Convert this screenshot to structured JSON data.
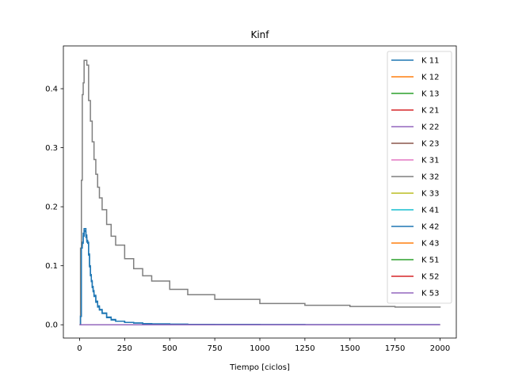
{
  "chart_data": {
    "type": "line",
    "title": "Kinf",
    "xlabel": "Tiempo [ciclos]",
    "ylabel": "",
    "xlim": [
      -90,
      2090
    ],
    "ylim": [
      -0.0225,
      0.4725
    ],
    "xticks": [
      0,
      250,
      500,
      750,
      1000,
      1250,
      1500,
      1750,
      2000
    ],
    "yticks": [
      0.0,
      0.1,
      0.2,
      0.3,
      0.4
    ],
    "grid": false,
    "legend_position": "upper-right",
    "series": [
      {
        "name": "K 11",
        "color": "#1f77b4",
        "step": true,
        "x": [
          0,
          5,
          10,
          15,
          20,
          25,
          30,
          35,
          40,
          45,
          50,
          55,
          60,
          65,
          70,
          75,
          80,
          90,
          100,
          110,
          125,
          150,
          175,
          200,
          250,
          300,
          350,
          400,
          500,
          600,
          750,
          1000,
          1250,
          1500,
          1750,
          2000
        ],
        "y": [
          0.0,
          0.015,
          0.135,
          0.14,
          0.155,
          0.163,
          0.163,
          0.152,
          0.143,
          0.14,
          0.12,
          0.1,
          0.085,
          0.075,
          0.065,
          0.058,
          0.05,
          0.04,
          0.032,
          0.026,
          0.02,
          0.013,
          0.009,
          0.006,
          0.004,
          0.003,
          0.002,
          0.0015,
          0.001,
          0.0007,
          0.0005,
          0.0003,
          0.0002,
          0.0002,
          0.0001,
          0.0001
        ]
      },
      {
        "name": "K 12",
        "color": "#ff7f0e",
        "x": [
          0,
          2000
        ],
        "y": [
          0.0,
          0.0
        ]
      },
      {
        "name": "K 13",
        "color": "#2ca02c",
        "x": [
          0,
          2000
        ],
        "y": [
          0.0,
          0.0
        ]
      },
      {
        "name": "K 21",
        "color": "#d62728",
        "x": [
          0,
          2000
        ],
        "y": [
          0.0,
          0.0
        ]
      },
      {
        "name": "K 22",
        "color": "#9467bd",
        "x": [
          0,
          2000
        ],
        "y": [
          0.0,
          0.0
        ]
      },
      {
        "name": "K 23",
        "color": "#8c564b",
        "x": [
          0,
          2000
        ],
        "y": [
          0.0,
          0.0
        ]
      },
      {
        "name": "K 31",
        "color": "#e377c2",
        "x": [
          0,
          2000
        ],
        "y": [
          0.0,
          0.0
        ]
      },
      {
        "name": "K 32",
        "color": "#7f7f7f",
        "step": true,
        "x": [
          0,
          5,
          10,
          15,
          20,
          25,
          30,
          40,
          50,
          60,
          70,
          80,
          90,
          100,
          110,
          125,
          150,
          175,
          200,
          250,
          300,
          350,
          400,
          500,
          600,
          750,
          1000,
          1250,
          1500,
          1750,
          2000
        ],
        "y": [
          0.0,
          0.13,
          0.245,
          0.39,
          0.41,
          0.448,
          0.448,
          0.44,
          0.38,
          0.345,
          0.31,
          0.28,
          0.255,
          0.233,
          0.215,
          0.195,
          0.17,
          0.15,
          0.135,
          0.112,
          0.095,
          0.083,
          0.074,
          0.06,
          0.051,
          0.043,
          0.036,
          0.033,
          0.031,
          0.03,
          0.029
        ]
      },
      {
        "name": "K 33",
        "color": "#bcbd22",
        "x": [
          0,
          2000
        ],
        "y": [
          0.0,
          0.0
        ]
      },
      {
        "name": "K 41",
        "color": "#17becf",
        "x": [
          0,
          2000
        ],
        "y": [
          0.0,
          0.0
        ]
      },
      {
        "name": "K 42",
        "color": "#1f77b4",
        "step": true,
        "x": [
          0,
          5,
          10,
          15,
          20,
          25,
          30,
          35,
          40,
          45,
          50,
          55,
          60,
          65,
          70,
          75,
          80,
          90,
          100,
          110,
          125,
          150,
          175,
          200,
          250,
          300,
          350,
          400,
          500,
          600,
          750,
          1000,
          1250,
          1500,
          1750,
          2000
        ],
        "y": [
          0.0,
          0.014,
          0.13,
          0.138,
          0.15,
          0.16,
          0.158,
          0.148,
          0.14,
          0.138,
          0.118,
          0.098,
          0.083,
          0.073,
          0.063,
          0.056,
          0.048,
          0.038,
          0.03,
          0.025,
          0.019,
          0.012,
          0.008,
          0.006,
          0.004,
          0.003,
          0.002,
          0.0015,
          0.001,
          0.0007,
          0.0005,
          0.0003,
          0.0002,
          0.0002,
          0.0001,
          0.0001
        ]
      },
      {
        "name": "K 43",
        "color": "#ff7f0e",
        "x": [
          0,
          2000
        ],
        "y": [
          0.0,
          0.0
        ]
      },
      {
        "name": "K 51",
        "color": "#2ca02c",
        "x": [
          0,
          2000
        ],
        "y": [
          0.0,
          0.0
        ]
      },
      {
        "name": "K 52",
        "color": "#d62728",
        "x": [
          0,
          2000
        ],
        "y": [
          0.0,
          0.0
        ]
      },
      {
        "name": "K 53",
        "color": "#9467bd",
        "x": [
          0,
          2000
        ],
        "y": [
          0.0,
          0.0
        ]
      }
    ]
  }
}
